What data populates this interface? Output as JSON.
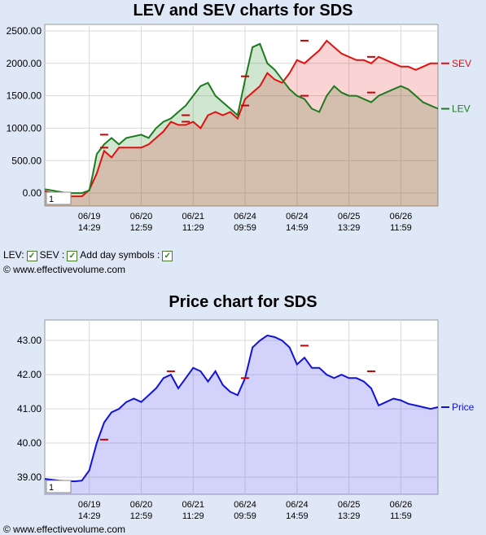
{
  "chart_data": [
    {
      "type": "line",
      "title": "LEV and SEV charts for SDS",
      "ylim": [
        -200,
        2600
      ],
      "y_ticks": [
        "2500.00",
        "2000.00",
        "1500.00",
        "1000.00",
        "500.00",
        "0.00"
      ],
      "y_tick_values": [
        2500,
        2000,
        1500,
        1000,
        500,
        0
      ],
      "x_ticks": [
        {
          "date": "06/19",
          "time": "14:29"
        },
        {
          "date": "06/20",
          "time": "12:59"
        },
        {
          "date": "06/21",
          "time": "11:29"
        },
        {
          "date": "06/24",
          "time": "09:59"
        },
        {
          "date": "06/24",
          "time": "14:59"
        },
        {
          "date": "06/25",
          "time": "13:29"
        },
        {
          "date": "06/26",
          "time": "11:59"
        }
      ],
      "x_tick_positions": [
        0,
        7,
        14,
        21,
        28,
        35,
        42
      ],
      "x_range": [
        -6,
        47
      ],
      "series": [
        {
          "name": "LEV",
          "color": "#1e7a1e",
          "values": [
            [
              -6,
              60
            ],
            [
              -3,
              0
            ],
            [
              -1,
              0
            ],
            [
              0,
              40
            ],
            [
              0.5,
              300
            ],
            [
              1,
              600
            ],
            [
              2,
              750
            ],
            [
              3,
              850
            ],
            [
              4,
              750
            ],
            [
              5,
              850
            ],
            [
              7,
              900
            ],
            [
              8,
              850
            ],
            [
              9,
              1000
            ],
            [
              10,
              1100
            ],
            [
              11,
              1150
            ],
            [
              12,
              1250
            ],
            [
              13,
              1350
            ],
            [
              14,
              1500
            ],
            [
              15,
              1650
            ],
            [
              16,
              1700
            ],
            [
              17,
              1500
            ],
            [
              18,
              1400
            ],
            [
              19,
              1300
            ],
            [
              20,
              1200
            ],
            [
              21,
              1750
            ],
            [
              22,
              2250
            ],
            [
              23,
              2300
            ],
            [
              24,
              2000
            ],
            [
              25,
              1900
            ],
            [
              26,
              1750
            ],
            [
              27,
              1600
            ],
            [
              28,
              1500
            ],
            [
              29,
              1450
            ],
            [
              30,
              1300
            ],
            [
              31,
              1250
            ],
            [
              32,
              1500
            ],
            [
              33,
              1650
            ],
            [
              34,
              1550
            ],
            [
              35,
              1500
            ],
            [
              36,
              1500
            ],
            [
              37,
              1450
            ],
            [
              38,
              1400
            ],
            [
              39,
              1500
            ],
            [
              40,
              1550
            ],
            [
              41,
              1600
            ],
            [
              42,
              1650
            ],
            [
              43,
              1600
            ],
            [
              44,
              1500
            ],
            [
              45,
              1400
            ],
            [
              46,
              1350
            ],
            [
              47,
              1300
            ]
          ]
        },
        {
          "name": "SEV",
          "color": "#e11111",
          "values": [
            [
              -6,
              30
            ],
            [
              -3,
              -50
            ],
            [
              -1,
              -50
            ],
            [
              0,
              50
            ],
            [
              1,
              300
            ],
            [
              2,
              650
            ],
            [
              3,
              550
            ],
            [
              4,
              700
            ],
            [
              5,
              700
            ],
            [
              7,
              700
            ],
            [
              8,
              750
            ],
            [
              9,
              850
            ],
            [
              10,
              950
            ],
            [
              11,
              1100
            ],
            [
              12,
              1050
            ],
            [
              13,
              1050
            ],
            [
              14,
              1100
            ],
            [
              15,
              1000
            ],
            [
              16,
              1200
            ],
            [
              17,
              1250
            ],
            [
              18,
              1200
            ],
            [
              19,
              1250
            ],
            [
              20,
              1150
            ],
            [
              21,
              1450
            ],
            [
              22,
              1550
            ],
            [
              23,
              1650
            ],
            [
              24,
              1850
            ],
            [
              25,
              1750
            ],
            [
              26,
              1700
            ],
            [
              27,
              1850
            ],
            [
              28,
              2050
            ],
            [
              29,
              2000
            ],
            [
              30,
              2100
            ],
            [
              31,
              2200
            ],
            [
              32,
              2350
            ],
            [
              33,
              2250
            ],
            [
              34,
              2150
            ],
            [
              35,
              2100
            ],
            [
              36,
              2050
            ],
            [
              37,
              2050
            ],
            [
              38,
              2000
            ],
            [
              39,
              2100
            ],
            [
              40,
              2050
            ],
            [
              41,
              2000
            ],
            [
              42,
              1950
            ],
            [
              43,
              1950
            ],
            [
              44,
              1900
            ],
            [
              45,
              1950
            ],
            [
              46,
              2000
            ],
            [
              47,
              2000
            ]
          ]
        }
      ],
      "legend": [
        "LEV",
        "SEV"
      ],
      "legend_position": "right",
      "day_markers": [
        {
          "x": 2,
          "y": 900
        },
        {
          "x": 2,
          "y": 700
        },
        {
          "x": 13,
          "y": 1200
        },
        {
          "x": 13,
          "y": 1100
        },
        {
          "x": 21,
          "y": 1800
        },
        {
          "x": 21,
          "y": 1350
        },
        {
          "x": 29,
          "y": 2350
        },
        {
          "x": 29,
          "y": 1500
        },
        {
          "x": 38,
          "y": 2100
        },
        {
          "x": 38,
          "y": 1550
        }
      ],
      "input_value": "1",
      "grid": true
    },
    {
      "type": "area",
      "title": "Price chart for SDS",
      "ylim": [
        38.5,
        43.6
      ],
      "y_ticks": [
        "43.00",
        "42.00",
        "41.00",
        "40.00",
        "39.00"
      ],
      "y_tick_values": [
        43,
        42,
        41,
        40,
        39
      ],
      "x_ticks": [
        {
          "date": "06/19",
          "time": "14:29"
        },
        {
          "date": "06/20",
          "time": "12:59"
        },
        {
          "date": "06/21",
          "time": "11:29"
        },
        {
          "date": "06/24",
          "time": "09:59"
        },
        {
          "date": "06/24",
          "time": "14:59"
        },
        {
          "date": "06/25",
          "time": "13:29"
        },
        {
          "date": "06/26",
          "time": "11:59"
        }
      ],
      "x_tick_positions": [
        0,
        7,
        14,
        21,
        28,
        35,
        42
      ],
      "x_range": [
        -6,
        47
      ],
      "series": [
        {
          "name": "Price",
          "color": "#1212d8",
          "values": [
            [
              -6,
              38.95
            ],
            [
              -4,
              38.9
            ],
            [
              -2,
              38.88
            ],
            [
              -1,
              38.9
            ],
            [
              0,
              39.2
            ],
            [
              1,
              40.0
            ],
            [
              2,
              40.6
            ],
            [
              3,
              40.9
            ],
            [
              4,
              41.0
            ],
            [
              5,
              41.2
            ],
            [
              6,
              41.3
            ],
            [
              7,
              41.2
            ],
            [
              8,
              41.4
            ],
            [
              9,
              41.6
            ],
            [
              10,
              41.9
            ],
            [
              11,
              42.0
            ],
            [
              12,
              41.6
            ],
            [
              13,
              41.9
            ],
            [
              14,
              42.2
            ],
            [
              15,
              42.1
            ],
            [
              16,
              41.8
            ],
            [
              17,
              42.1
            ],
            [
              18,
              41.7
            ],
            [
              19,
              41.5
            ],
            [
              20,
              41.4
            ],
            [
              21,
              41.9
            ],
            [
              22,
              42.8
            ],
            [
              23,
              43.0
            ],
            [
              24,
              43.15
            ],
            [
              25,
              43.1
            ],
            [
              26,
              43.0
            ],
            [
              27,
              42.8
            ],
            [
              28,
              42.3
            ],
            [
              29,
              42.5
            ],
            [
              30,
              42.2
            ],
            [
              31,
              42.2
            ],
            [
              32,
              42.0
            ],
            [
              33,
              41.9
            ],
            [
              34,
              42.0
            ],
            [
              35,
              41.9
            ],
            [
              36,
              41.9
            ],
            [
              37,
              41.8
            ],
            [
              38,
              41.6
            ],
            [
              39,
              41.1
            ],
            [
              40,
              41.2
            ],
            [
              41,
              41.3
            ],
            [
              42,
              41.25
            ],
            [
              43,
              41.15
            ],
            [
              44,
              41.1
            ],
            [
              45,
              41.05
            ],
            [
              46,
              41.0
            ],
            [
              47,
              41.05
            ]
          ]
        }
      ],
      "legend": [
        "Price"
      ],
      "legend_position": "right",
      "day_markers": [
        {
          "x": 2,
          "y": 40.1
        },
        {
          "x": 11,
          "y": 42.1
        },
        {
          "x": 21,
          "y": 41.9
        },
        {
          "x": 29,
          "y": 42.85
        },
        {
          "x": 38,
          "y": 42.1
        }
      ],
      "input_value": "1",
      "grid": true
    }
  ],
  "controls": {
    "lev_label": "LEV:",
    "sev_label": "SEV :",
    "day_symbols_label": "Add day symbols :",
    "checkmark": "✓"
  },
  "copyright": "© www.effectivevolume.com",
  "copyright_bottom": "© www.effectivevolume.com"
}
